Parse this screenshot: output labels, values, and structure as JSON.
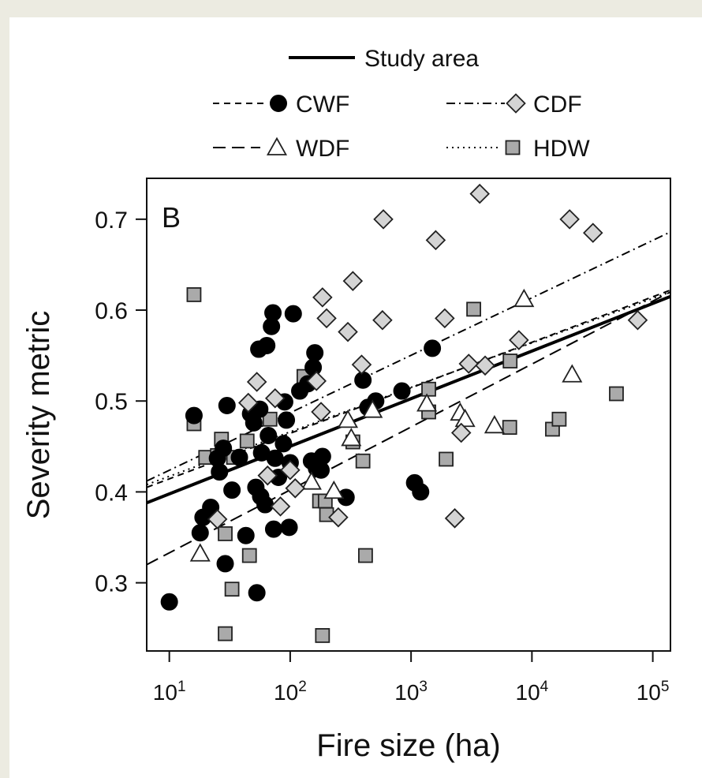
{
  "chart_data": {
    "type": "scatter",
    "panel_label": "B",
    "xlabel": "Fire size (ha)",
    "ylabel": "Severity metric",
    "x_scale": "log10",
    "xlim": [
      6.5,
      140000
    ],
    "ylim": [
      0.225,
      0.745
    ],
    "grid": false,
    "x_ticks": [
      10,
      100,
      1000,
      10000,
      100000
    ],
    "x_tick_labels": [
      {
        "base": "10",
        "exp": "1"
      },
      {
        "base": "10",
        "exp": "2"
      },
      {
        "base": "10",
        "exp": "3"
      },
      {
        "base": "10",
        "exp": "4"
      },
      {
        "base": "10",
        "exp": "5"
      }
    ],
    "y_ticks": [
      0.3,
      0.4,
      0.5,
      0.6,
      0.7
    ],
    "y_tick_labels": [
      "0.3",
      "0.4",
      "0.5",
      "0.6",
      "0.7"
    ],
    "legend": {
      "placement": "top",
      "entries": [
        {
          "label": "Study area",
          "line": "solid",
          "marker": "none"
        },
        {
          "label": "CWF",
          "line": "short-dash",
          "marker": "circle"
        },
        {
          "label": "CDF",
          "line": "dash-dot",
          "marker": "diamond"
        },
        {
          "label": "WDF",
          "line": "long-dash",
          "marker": "triangle"
        },
        {
          "label": "HDW",
          "line": "dotted",
          "marker": "square"
        }
      ]
    },
    "fit_lines": [
      {
        "name": "Study area",
        "style": "solid",
        "points": [
          [
            6.5,
            0.388
          ],
          [
            140000,
            0.615
          ]
        ]
      },
      {
        "name": "CWF",
        "style": "short-dash",
        "points": [
          [
            6.5,
            0.405
          ],
          [
            140000,
            0.622
          ]
        ]
      },
      {
        "name": "CDF",
        "style": "dash-dot",
        "points": [
          [
            6.5,
            0.412
          ],
          [
            140000,
            0.686
          ]
        ]
      },
      {
        "name": "WDF",
        "style": "long-dash",
        "points": [
          [
            6.5,
            0.32
          ],
          [
            140000,
            0.62
          ]
        ]
      },
      {
        "name": "HDW",
        "style": "dotted",
        "points": [
          [
            6.5,
            0.408
          ],
          [
            140000,
            0.62
          ]
        ]
      }
    ],
    "series": [
      {
        "name": "CWF",
        "marker": "circle",
        "color": "#000000",
        "points": [
          [
            10,
            0.279
          ],
          [
            16,
            0.484
          ],
          [
            18,
            0.355
          ],
          [
            19,
            0.372
          ],
          [
            22,
            0.383
          ],
          [
            25,
            0.437
          ],
          [
            26,
            0.422
          ],
          [
            28,
            0.448
          ],
          [
            29,
            0.321
          ],
          [
            30,
            0.495
          ],
          [
            33,
            0.402
          ],
          [
            38,
            0.438
          ],
          [
            43,
            0.352
          ],
          [
            47,
            0.486
          ],
          [
            50,
            0.476
          ],
          [
            52,
            0.405
          ],
          [
            53,
            0.289
          ],
          [
            55,
            0.557
          ],
          [
            56,
            0.491
          ],
          [
            57,
            0.395
          ],
          [
            58,
            0.443
          ],
          [
            62,
            0.386
          ],
          [
            64,
            0.561
          ],
          [
            66,
            0.462
          ],
          [
            70,
            0.582
          ],
          [
            72,
            0.597
          ],
          [
            73,
            0.359
          ],
          [
            75,
            0.437
          ],
          [
            80,
            0.416
          ],
          [
            88,
            0.453
          ],
          [
            90,
            0.499
          ],
          [
            93,
            0.479
          ],
          [
            98,
            0.361
          ],
          [
            100,
            0.432
          ],
          [
            106,
            0.596
          ],
          [
            120,
            0.511
          ],
          [
            140,
            0.519
          ],
          [
            150,
            0.434
          ],
          [
            155,
            0.537
          ],
          [
            160,
            0.553
          ],
          [
            165,
            0.426
          ],
          [
            180,
            0.424
          ],
          [
            185,
            0.439
          ],
          [
            290,
            0.394
          ],
          [
            400,
            0.523
          ],
          [
            440,
            0.493
          ],
          [
            510,
            0.5
          ],
          [
            840,
            0.511
          ],
          [
            1070,
            0.41
          ],
          [
            1200,
            0.4
          ],
          [
            1500,
            0.558
          ]
        ]
      },
      {
        "name": "CDF",
        "marker": "diamond",
        "color": "#d4d4d4",
        "points": [
          [
            25,
            0.37
          ],
          [
            45,
            0.498
          ],
          [
            53,
            0.521
          ],
          [
            65,
            0.418
          ],
          [
            75,
            0.503
          ],
          [
            83,
            0.384
          ],
          [
            100,
            0.424
          ],
          [
            110,
            0.404
          ],
          [
            165,
            0.522
          ],
          [
            180,
            0.488
          ],
          [
            185,
            0.614
          ],
          [
            200,
            0.591
          ],
          [
            250,
            0.372
          ],
          [
            300,
            0.576
          ],
          [
            330,
            0.632
          ],
          [
            390,
            0.54
          ],
          [
            580,
            0.589
          ],
          [
            590,
            0.7
          ],
          [
            1600,
            0.677
          ],
          [
            1900,
            0.591
          ],
          [
            2300,
            0.371
          ],
          [
            2600,
            0.465
          ],
          [
            3000,
            0.541
          ],
          [
            3700,
            0.728
          ],
          [
            4100,
            0.539
          ],
          [
            7800,
            0.567
          ],
          [
            20500,
            0.7
          ],
          [
            32000,
            0.685
          ],
          [
            75000,
            0.589
          ]
        ]
      },
      {
        "name": "WDF",
        "marker": "triangle",
        "color": "#ffffff",
        "points": [
          [
            18,
            0.332
          ],
          [
            150,
            0.411
          ],
          [
            230,
            0.401
          ],
          [
            300,
            0.479
          ],
          [
            320,
            0.459
          ],
          [
            480,
            0.49
          ],
          [
            1350,
            0.497
          ],
          [
            2550,
            0.487
          ],
          [
            2800,
            0.48
          ],
          [
            4900,
            0.473
          ],
          [
            8600,
            0.612
          ],
          [
            21500,
            0.529
          ]
        ]
      },
      {
        "name": "HDW",
        "marker": "square",
        "color": "#aaaaaa",
        "points": [
          [
            16,
            0.617
          ],
          [
            16,
            0.475
          ],
          [
            20,
            0.438
          ],
          [
            25,
            0.44
          ],
          [
            27,
            0.458
          ],
          [
            29,
            0.244
          ],
          [
            29,
            0.354
          ],
          [
            33,
            0.293
          ],
          [
            34,
            0.438
          ],
          [
            44,
            0.456
          ],
          [
            46,
            0.33
          ],
          [
            68,
            0.48
          ],
          [
            130,
            0.527
          ],
          [
            175,
            0.39
          ],
          [
            185,
            0.242
          ],
          [
            195,
            0.39
          ],
          [
            200,
            0.375
          ],
          [
            330,
            0.455
          ],
          [
            400,
            0.434
          ],
          [
            420,
            0.33
          ],
          [
            1400,
            0.513
          ],
          [
            1400,
            0.488
          ],
          [
            1950,
            0.436
          ],
          [
            3300,
            0.601
          ],
          [
            6550,
            0.471
          ],
          [
            6600,
            0.544
          ],
          [
            14800,
            0.469
          ],
          [
            16800,
            0.48
          ],
          [
            50000,
            0.508
          ]
        ]
      }
    ]
  }
}
